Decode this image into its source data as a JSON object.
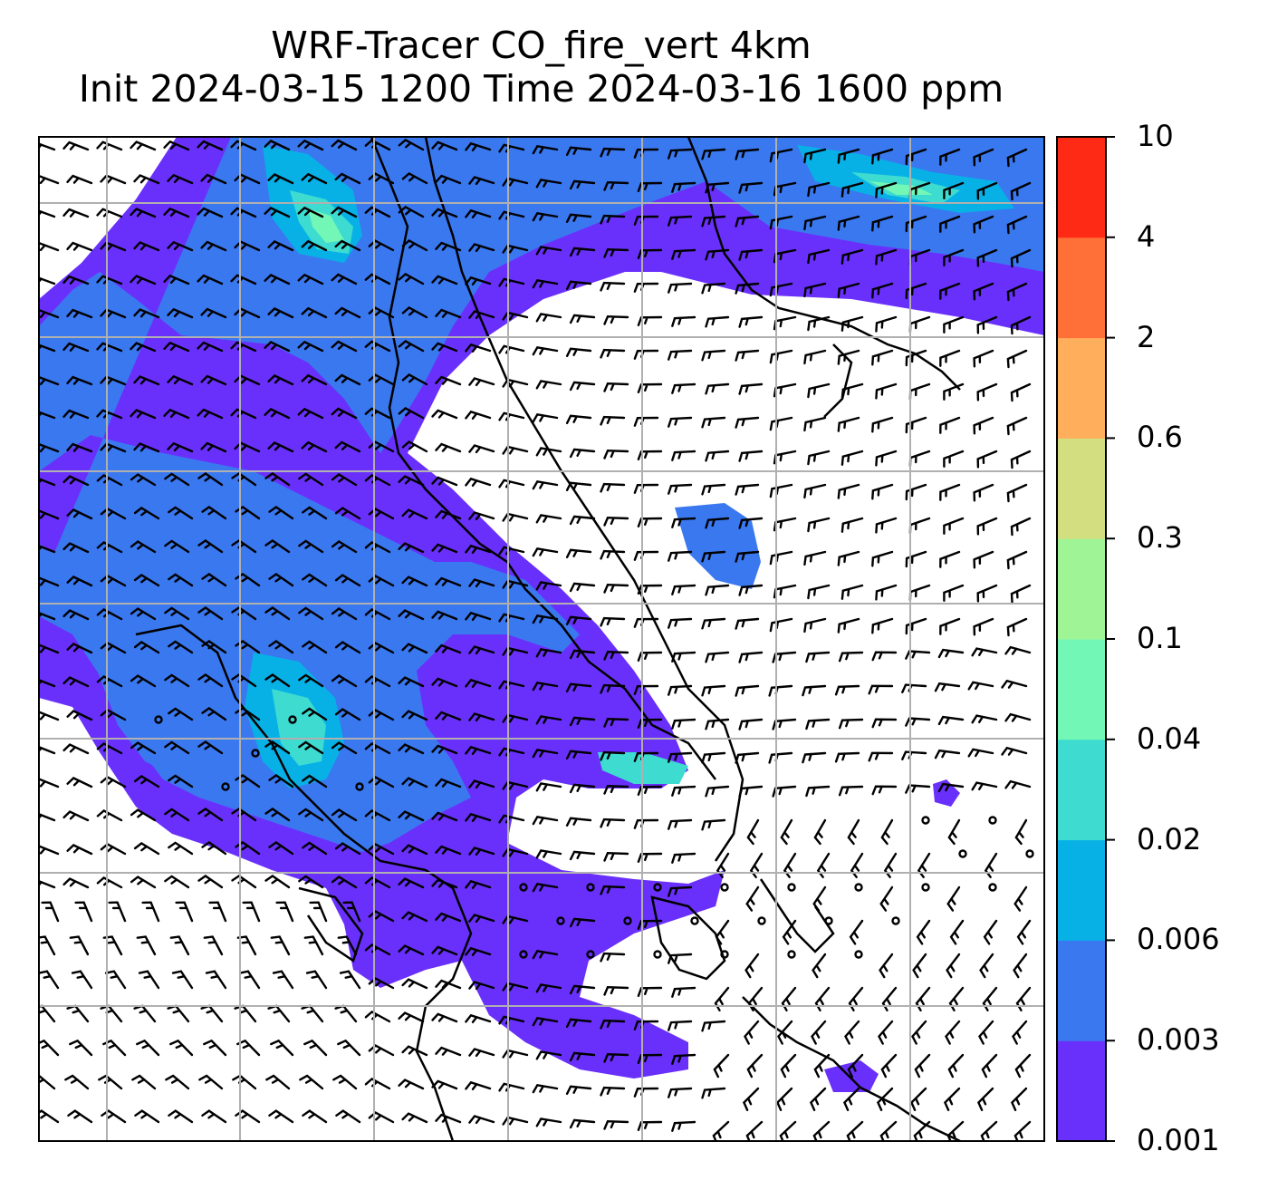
{
  "title": {
    "line1": "WRF-Tracer CO_fire_vert 4km",
    "line2": "Init 2024-03-15 1200 Time 2024-03-16 1600 ppm"
  },
  "colorbar": {
    "levels": [
      "0.001",
      "0.003",
      "0.006",
      "0.02",
      "0.04",
      "0.1",
      "0.3",
      "0.6",
      "2",
      "4",
      "10"
    ],
    "colors": [
      "#6a30fb",
      "#3a78f0",
      "#07b1e6",
      "#3ddbd0",
      "#72f7b6",
      "#9ff596",
      "#d2de80",
      "#ffae5c",
      "#ff7039",
      "#ff2a16"
    ]
  },
  "map": {
    "background": "#ffffff",
    "gridline_color": "#b0b0b0",
    "coastline_color": "#000000",
    "wind_barb_color": "#000000"
  }
}
